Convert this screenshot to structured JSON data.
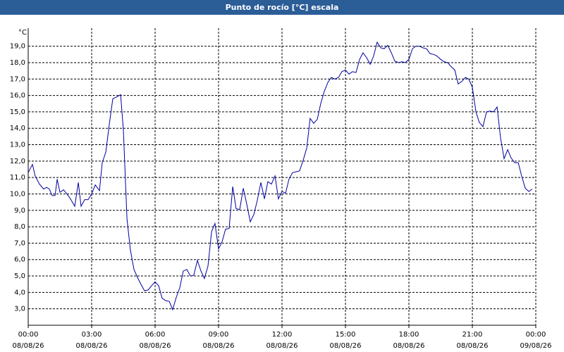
{
  "chart_data": {
    "type": "line",
    "title": "Punto de rocío [°C] escala",
    "y_unit": "°C",
    "x": [
      0,
      0.2,
      0.33,
      0.53,
      0.73,
      0.87,
      1,
      1.13,
      1.27,
      1.37,
      1.5,
      1.67,
      1.83,
      2,
      2.2,
      2.37,
      2.5,
      2.67,
      2.83,
      3,
      3.17,
      3.37,
      3.5,
      3.67,
      3.83,
      4,
      4.17,
      4.37,
      4.5,
      4.67,
      4.83,
      5,
      5.17,
      5.33,
      5.5,
      5.67,
      5.83,
      6,
      6.17,
      6.33,
      6.5,
      6.67,
      6.83,
      7,
      7.17,
      7.33,
      7.5,
      7.67,
      7.83,
      8,
      8.17,
      8.33,
      8.5,
      8.67,
      8.83,
      9,
      9.17,
      9.33,
      9.5,
      9.67,
      9.83,
      10,
      10.17,
      10.33,
      10.5,
      10.67,
      10.83,
      11,
      11.17,
      11.33,
      11.5,
      11.67,
      11.83,
      12,
      12.17,
      12.33,
      12.5,
      12.67,
      12.83,
      13,
      13.17,
      13.33,
      13.5,
      13.67,
      13.83,
      14,
      14.17,
      14.33,
      14.5,
      14.67,
      14.83,
      15,
      15.17,
      15.33,
      15.5,
      15.67,
      15.83,
      16,
      16.17,
      16.33,
      16.5,
      16.67,
      16.83,
      17,
      17.17,
      17.33,
      17.5,
      17.67,
      17.83,
      18,
      18.17,
      18.33,
      18.5,
      18.67,
      18.83,
      19,
      19.17,
      19.33,
      19.5,
      19.67,
      19.83,
      20,
      20.17,
      20.33,
      20.5,
      20.67,
      20.83,
      21,
      21.17,
      21.33,
      21.5,
      21.67,
      21.83,
      22,
      22.17,
      22.33,
      22.5,
      22.67,
      22.83,
      23,
      23.17,
      23.33,
      23.5,
      23.67,
      23.83
    ],
    "series": [
      {
        "color": "#0000a0",
        "values": [
          11.3,
          11.8,
          11.1,
          10.6,
          10.3,
          10.4,
          10.3,
          9.9,
          9.9,
          10.9,
          10.1,
          10.25,
          10.0,
          9.7,
          9.25,
          10.7,
          9.25,
          9.65,
          9.65,
          10.0,
          10.55,
          10.2,
          11.9,
          12.55,
          14.2,
          15.8,
          15.9,
          16.05,
          13.9,
          8.5,
          6.6,
          5.4,
          4.9,
          4.5,
          4.1,
          4.15,
          4.4,
          4.65,
          4.4,
          3.65,
          3.5,
          3.45,
          2.95,
          3.7,
          4.3,
          5.3,
          5.4,
          5.0,
          5.05,
          5.95,
          5.3,
          4.85,
          5.6,
          7.7,
          8.2,
          6.65,
          7.1,
          7.85,
          7.9,
          10.45,
          9.1,
          9.05,
          10.35,
          9.4,
          8.3,
          8.75,
          9.6,
          10.7,
          9.7,
          10.75,
          10.6,
          11.1,
          9.7,
          10.15,
          10.05,
          10.9,
          11.3,
          11.35,
          11.4,
          12.05,
          12.8,
          14.6,
          14.3,
          14.55,
          15.5,
          16.25,
          16.8,
          17.1,
          17.0,
          17.1,
          17.45,
          17.55,
          17.3,
          17.45,
          17.4,
          18.2,
          18.6,
          18.3,
          17.9,
          18.4,
          19.25,
          18.9,
          18.85,
          19.05,
          18.6,
          18.1,
          18.0,
          18.05,
          18.0,
          18.2,
          18.85,
          19.0,
          19.0,
          18.9,
          18.85,
          18.55,
          18.5,
          18.4,
          18.2,
          18.05,
          18.0,
          17.75,
          17.55,
          16.7,
          16.85,
          17.1,
          17.0,
          16.5,
          15.0,
          14.35,
          14.1,
          15.0,
          15.05,
          15.0,
          15.3,
          13.45,
          12.15,
          12.7,
          12.2,
          11.9,
          11.9,
          11.1,
          10.35,
          10.15,
          10.3
        ]
      }
    ],
    "xlim": [
      0,
      24
    ],
    "xticks": [
      {
        "value": 0,
        "label": "00:00"
      },
      {
        "value": 3,
        "label": "03:00"
      },
      {
        "value": 6,
        "label": "06:00"
      },
      {
        "value": 9,
        "label": "09:00"
      },
      {
        "value": 12,
        "label": "12:00"
      },
      {
        "value": 15,
        "label": "15:00"
      },
      {
        "value": 18,
        "label": "18:00"
      },
      {
        "value": 21,
        "label": "21:00"
      },
      {
        "value": 24,
        "label": "00:00"
      }
    ],
    "xtick_dates": [
      "08/08/26",
      "08/08/26",
      "08/08/26",
      "08/08/26",
      "08/08/26",
      "08/08/26",
      "08/08/26",
      "08/08/26",
      "09/08/26"
    ],
    "ylim": [
      2.0,
      20.1
    ],
    "yticks": [
      {
        "value": 3,
        "label": "3,0"
      },
      {
        "value": 4,
        "label": "4,0"
      },
      {
        "value": 5,
        "label": "5,0"
      },
      {
        "value": 6,
        "label": "6,0"
      },
      {
        "value": 7,
        "label": "7,0"
      },
      {
        "value": 8,
        "label": "8,0"
      },
      {
        "value": 9,
        "label": "9,0"
      },
      {
        "value": 10,
        "label": "10,0"
      },
      {
        "value": 11,
        "label": "11,0"
      },
      {
        "value": 12,
        "label": "12,0"
      },
      {
        "value": 13,
        "label": "13,0"
      },
      {
        "value": 14,
        "label": "14,0"
      },
      {
        "value": 15,
        "label": "15,0"
      },
      {
        "value": 16,
        "label": "16,0"
      },
      {
        "value": 17,
        "label": "17,0"
      },
      {
        "value": 18,
        "label": "18,0"
      },
      {
        "value": 19,
        "label": "19,0"
      }
    ],
    "grid": true
  }
}
